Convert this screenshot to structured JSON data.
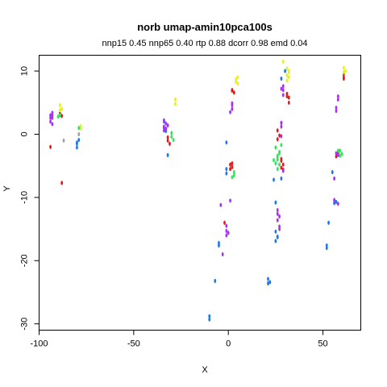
{
  "chart_data": {
    "type": "scatter",
    "title": "norb umap-amin10pca100s",
    "subtitle": "nnp15 0.45 nnp65 0.40 rtp 0.88 dcorr 0.98 emd 0.04",
    "xlabel": "X",
    "ylabel": "Y",
    "xlim": [
      -100,
      70
    ],
    "ylim": [
      -31,
      12.5
    ],
    "x_ticks": [
      -100,
      -50,
      0,
      50
    ],
    "y_ticks": [
      10,
      0,
      -10,
      -20,
      -30
    ],
    "grid": false,
    "legend": "none",
    "colors": {
      "red": "#e31a1c",
      "yellow": "#e6f21a",
      "green": "#2be85a",
      "blue": "#1f78e8",
      "purple": "#a733f0",
      "gray": "#9aa3a8"
    },
    "series": [
      {
        "color": "red",
        "points": [
          [
            -94,
            -2
          ],
          [
            -89,
            3.3
          ],
          [
            -88,
            2.9
          ],
          [
            -88,
            -7.7
          ],
          [
            -32,
            -1
          ],
          [
            -31,
            -1.5
          ],
          [
            -32,
            -0.5
          ],
          [
            1,
            -4.8
          ],
          [
            2,
            -5.2
          ],
          [
            1,
            -5.5
          ],
          [
            2,
            -4.6
          ],
          [
            2,
            7
          ],
          [
            3,
            6.6
          ],
          [
            2,
            6.9
          ],
          [
            26,
            0.6
          ],
          [
            27,
            -0.2
          ],
          [
            28,
            -4.2
          ],
          [
            29,
            -4.8
          ],
          [
            28,
            -5.3
          ],
          [
            29,
            -5.6
          ],
          [
            28,
            -3.9
          ],
          [
            31,
            6.4
          ],
          [
            32,
            5.8
          ],
          [
            32,
            5
          ],
          [
            31,
            6
          ],
          [
            28,
            1.8
          ],
          [
            61,
            9.5
          ],
          [
            61,
            8.8
          ],
          [
            61,
            9
          ],
          [
            58,
            -3
          ],
          [
            57,
            -3.5
          ],
          [
            -2,
            -14
          ],
          [
            26,
            -0.8
          ]
        ]
      },
      {
        "color": "yellow",
        "points": [
          [
            -89,
            4.6
          ],
          [
            -88,
            4
          ],
          [
            -89,
            3.8
          ],
          [
            -78,
            1.3
          ],
          [
            -78,
            0.9
          ],
          [
            -28,
            5.5
          ],
          [
            -28,
            4.8
          ],
          [
            5,
            9
          ],
          [
            4,
            8.3
          ],
          [
            5,
            8
          ],
          [
            4,
            8.7
          ],
          [
            29,
            11.5
          ],
          [
            31,
            10.4
          ],
          [
            32,
            10
          ],
          [
            31,
            9.3
          ],
          [
            32,
            9.8
          ],
          [
            31,
            8.5
          ],
          [
            32,
            9
          ],
          [
            61,
            10.5
          ],
          [
            62,
            10
          ],
          [
            61,
            9.8
          ]
        ]
      },
      {
        "color": "green",
        "points": [
          [
            -90,
            2.8
          ],
          [
            -89,
            3
          ],
          [
            -79,
            1
          ],
          [
            -30,
            0.2
          ],
          [
            -30,
            -0.4
          ],
          [
            -29,
            -0.9
          ],
          [
            3,
            -6
          ],
          [
            3,
            -6.5
          ],
          [
            2,
            -6.8
          ],
          [
            27,
            -2.8
          ],
          [
            26,
            -3.4
          ],
          [
            26,
            -4
          ],
          [
            25,
            -4.6
          ],
          [
            27,
            -3
          ],
          [
            26,
            -3.7
          ],
          [
            25,
            -2.1
          ],
          [
            27,
            -4.8
          ],
          [
            26,
            -5.5
          ],
          [
            28,
            -1.7
          ],
          [
            24,
            -4.1
          ],
          [
            59,
            -2.6
          ],
          [
            60,
            -3.1
          ],
          [
            59,
            -3.4
          ],
          [
            58,
            -2.6
          ]
        ]
      },
      {
        "color": "blue",
        "points": [
          [
            -79,
            -0.9
          ],
          [
            -80,
            -1.5
          ],
          [
            -80,
            -2.1
          ],
          [
            -80,
            -1.3
          ],
          [
            -34,
            2
          ],
          [
            -34,
            1
          ],
          [
            -33,
            0.5
          ],
          [
            -32,
            -3.3
          ],
          [
            -1,
            -5.5
          ],
          [
            -1,
            -6.2
          ],
          [
            -1,
            -1.3
          ],
          [
            -5,
            -17.2
          ],
          [
            -5,
            -17.6
          ],
          [
            -10,
            -28.8
          ],
          [
            -10,
            -29.3
          ],
          [
            -7,
            -23.2
          ],
          [
            21,
            -22.9
          ],
          [
            22,
            -23.4
          ],
          [
            21,
            -23.6
          ],
          [
            25,
            -15.4
          ],
          [
            26,
            -16.3
          ],
          [
            25,
            -16.9
          ],
          [
            26,
            -16.2
          ],
          [
            24,
            -7.2
          ],
          [
            25,
            -10.8
          ],
          [
            28,
            -7
          ],
          [
            30,
            10
          ],
          [
            28,
            8.8
          ],
          [
            52,
            -17.6
          ],
          [
            52,
            -18
          ],
          [
            53,
            -14
          ],
          [
            56,
            -10.6
          ],
          [
            57,
            -10.7
          ],
          [
            56,
            -10.9
          ],
          [
            55,
            -6
          ]
        ]
      },
      {
        "color": "purple",
        "points": [
          [
            -93,
            3.4
          ],
          [
            -94,
            3
          ],
          [
            -94,
            2.6
          ],
          [
            -94,
            2
          ],
          [
            -93,
            1.6
          ],
          [
            -93,
            2.6
          ],
          [
            -93,
            3
          ],
          [
            -34,
            2.2
          ],
          [
            -34,
            1.2
          ],
          [
            -34,
            0.6
          ],
          [
            -33,
            1.7
          ],
          [
            -33,
            0.9
          ],
          [
            -32,
            1.4
          ],
          [
            2,
            4.6
          ],
          [
            2,
            4
          ],
          [
            1,
            3.5
          ],
          [
            2,
            4.9
          ],
          [
            1,
            -10.5
          ],
          [
            -1,
            -14.5
          ],
          [
            -1,
            -15.3
          ],
          [
            -1,
            -16
          ],
          [
            0,
            -15.6
          ],
          [
            -4,
            -11.2
          ],
          [
            -3,
            -19
          ],
          [
            26,
            -12.6
          ],
          [
            26,
            -13.6
          ],
          [
            27,
            -14.6
          ],
          [
            27,
            -15
          ],
          [
            26,
            -12
          ],
          [
            27,
            -13
          ],
          [
            28,
            1.8
          ],
          [
            28,
            1.2
          ],
          [
            29,
            7.6
          ],
          [
            28,
            7.2
          ],
          [
            29,
            7
          ],
          [
            29,
            6.2
          ],
          [
            28,
            -0.3
          ],
          [
            29,
            -5.8
          ],
          [
            58,
            6
          ],
          [
            58,
            5.5
          ],
          [
            57,
            4.2
          ],
          [
            57,
            3.7
          ],
          [
            58,
            -3.3
          ],
          [
            57,
            -3
          ],
          [
            56,
            -7
          ],
          [
            56,
            -10.4
          ],
          [
            58,
            -11
          ]
        ]
      },
      {
        "color": "gray",
        "points": [
          [
            -79,
            0
          ],
          [
            -87,
            -1
          ]
        ]
      }
    ]
  }
}
